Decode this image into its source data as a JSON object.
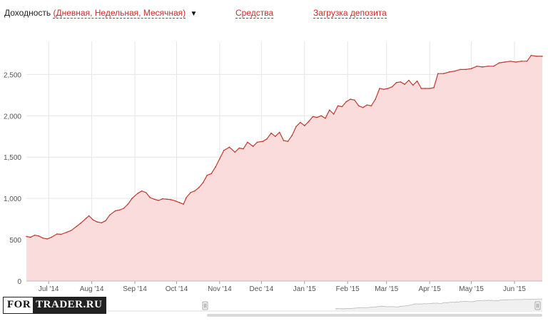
{
  "header": {
    "title": "Доходность",
    "modes": "(Дневная, Недельная, Месячная)",
    "dropdown_caret": "▼",
    "link_funds": "Средства",
    "link_deposit": "Загрузка депозита"
  },
  "logo": {
    "part_a": "FOR",
    "part_b": "TRADER.RU"
  },
  "colors": {
    "line": "#c0392b",
    "area": "#fadcdc",
    "grid": "#e6e6e6",
    "accent": "#cc2b2b"
  },
  "chart_data": {
    "type": "area",
    "title": "",
    "xlabel": "",
    "ylabel": "",
    "ylim": [
      0,
      2900
    ],
    "yticks": [
      {
        "label": "0",
        "value": 0
      },
      {
        "label": "500",
        "value": 500
      },
      {
        "label": "1,000",
        "value": 1000
      },
      {
        "label": "1,500",
        "value": 1500
      },
      {
        "label": "2,000",
        "value": 2000
      },
      {
        "label": "2,500",
        "value": 2500
      }
    ],
    "xdomain": [
      "2014-06-15",
      "2015-06-21"
    ],
    "xticks": [
      {
        "label": "Jul '14",
        "date": "2014-07-01"
      },
      {
        "label": "Aug '14",
        "date": "2014-08-01"
      },
      {
        "label": "Sep '14",
        "date": "2014-09-01"
      },
      {
        "label": "Oct '14",
        "date": "2014-10-01"
      },
      {
        "label": "Nov '14",
        "date": "2014-11-01"
      },
      {
        "label": "Dec '14",
        "date": "2014-12-01"
      },
      {
        "label": "Jan '15",
        "date": "2015-01-01"
      },
      {
        "label": "Feb '15",
        "date": "2015-02-01"
      },
      {
        "label": "Mar '15",
        "date": "2015-03-01"
      },
      {
        "label": "Apr '15",
        "date": "2015-04-01"
      },
      {
        "label": "May '15",
        "date": "2015-05-01"
      },
      {
        "label": "Jun '15",
        "date": "2015-06-01"
      }
    ],
    "grid": true,
    "legend": "none",
    "series": [
      {
        "points": [
          [
            "2014-06-15",
            540
          ],
          [
            "2014-06-18",
            530
          ],
          [
            "2014-06-21",
            555
          ],
          [
            "2014-06-24",
            545
          ],
          [
            "2014-06-27",
            520
          ],
          [
            "2014-06-30",
            510
          ],
          [
            "2014-07-03",
            530
          ],
          [
            "2014-07-07",
            570
          ],
          [
            "2014-07-10",
            565
          ],
          [
            "2014-07-14",
            590
          ],
          [
            "2014-07-17",
            610
          ],
          [
            "2014-07-21",
            660
          ],
          [
            "2014-07-24",
            700
          ],
          [
            "2014-07-28",
            760
          ],
          [
            "2014-07-30",
            790
          ],
          [
            "2014-08-02",
            740
          ],
          [
            "2014-08-05",
            715
          ],
          [
            "2014-08-08",
            705
          ],
          [
            "2014-08-11",
            730
          ],
          [
            "2014-08-14",
            800
          ],
          [
            "2014-08-18",
            850
          ],
          [
            "2014-08-21",
            860
          ],
          [
            "2014-08-24",
            880
          ],
          [
            "2014-08-27",
            930
          ],
          [
            "2014-08-30",
            1000
          ],
          [
            "2014-09-03",
            1060
          ],
          [
            "2014-09-06",
            1090
          ],
          [
            "2014-09-09",
            1070
          ],
          [
            "2014-09-12",
            1010
          ],
          [
            "2014-09-15",
            990
          ],
          [
            "2014-09-18",
            975
          ],
          [
            "2014-09-21",
            995
          ],
          [
            "2014-09-24",
            990
          ],
          [
            "2014-09-27",
            985
          ],
          [
            "2014-09-30",
            970
          ],
          [
            "2014-10-03",
            950
          ],
          [
            "2014-10-06",
            930
          ],
          [
            "2014-10-08",
            1010
          ],
          [
            "2014-10-11",
            1070
          ],
          [
            "2014-10-14",
            1090
          ],
          [
            "2014-10-17",
            1130
          ],
          [
            "2014-10-20",
            1190
          ],
          [
            "2014-10-23",
            1280
          ],
          [
            "2014-10-26",
            1300
          ],
          [
            "2014-10-29",
            1380
          ],
          [
            "2014-11-01",
            1480
          ],
          [
            "2014-11-04",
            1580
          ],
          [
            "2014-11-08",
            1620
          ],
          [
            "2014-11-12",
            1560
          ],
          [
            "2014-11-15",
            1610
          ],
          [
            "2014-11-18",
            1600
          ],
          [
            "2014-11-21",
            1680
          ],
          [
            "2014-11-25",
            1630
          ],
          [
            "2014-11-28",
            1680
          ],
          [
            "2014-12-02",
            1690
          ],
          [
            "2014-12-05",
            1720
          ],
          [
            "2014-12-08",
            1790
          ],
          [
            "2014-12-11",
            1750
          ],
          [
            "2014-12-14",
            1800
          ],
          [
            "2014-12-17",
            1700
          ],
          [
            "2014-12-20",
            1690
          ],
          [
            "2014-12-23",
            1760
          ],
          [
            "2014-12-26",
            1870
          ],
          [
            "2014-12-29",
            1920
          ],
          [
            "2015-01-01",
            1880
          ],
          [
            "2015-01-04",
            1930
          ],
          [
            "2015-01-07",
            1990
          ],
          [
            "2015-01-10",
            1980
          ],
          [
            "2015-01-13",
            2000
          ],
          [
            "2015-01-16",
            1970
          ],
          [
            "2015-01-19",
            2070
          ],
          [
            "2015-01-22",
            2020
          ],
          [
            "2015-01-25",
            2120
          ],
          [
            "2015-01-28",
            2110
          ],
          [
            "2015-01-31",
            2170
          ],
          [
            "2015-02-03",
            2200
          ],
          [
            "2015-02-06",
            2190
          ],
          [
            "2015-02-09",
            2120
          ],
          [
            "2015-02-12",
            2100
          ],
          [
            "2015-02-15",
            2130
          ],
          [
            "2015-02-18",
            2120
          ],
          [
            "2015-02-21",
            2200
          ],
          [
            "2015-02-24",
            2330
          ],
          [
            "2015-02-27",
            2320
          ],
          [
            "2015-03-02",
            2330
          ],
          [
            "2015-03-05",
            2350
          ],
          [
            "2015-03-08",
            2400
          ],
          [
            "2015-03-11",
            2410
          ],
          [
            "2015-03-14",
            2380
          ],
          [
            "2015-03-17",
            2430
          ],
          [
            "2015-03-20",
            2370
          ],
          [
            "2015-03-23",
            2420
          ],
          [
            "2015-03-26",
            2330
          ],
          [
            "2015-03-29",
            2330
          ],
          [
            "2015-04-01",
            2330
          ],
          [
            "2015-04-04",
            2340
          ],
          [
            "2015-04-07",
            2510
          ],
          [
            "2015-04-11",
            2510
          ],
          [
            "2015-04-15",
            2530
          ],
          [
            "2015-04-19",
            2540
          ],
          [
            "2015-04-23",
            2560
          ],
          [
            "2015-04-27",
            2560
          ],
          [
            "2015-05-01",
            2570
          ],
          [
            "2015-05-05",
            2600
          ],
          [
            "2015-05-09",
            2590
          ],
          [
            "2015-05-13",
            2600
          ],
          [
            "2015-05-17",
            2600
          ],
          [
            "2015-05-21",
            2640
          ],
          [
            "2015-05-25",
            2650
          ],
          [
            "2015-05-29",
            2660
          ],
          [
            "2015-06-02",
            2650
          ],
          [
            "2015-06-06",
            2660
          ],
          [
            "2015-06-10",
            2660
          ],
          [
            "2015-06-13",
            2730
          ],
          [
            "2015-06-17",
            2720
          ],
          [
            "2015-06-21",
            2720
          ]
        ]
      }
    ]
  }
}
